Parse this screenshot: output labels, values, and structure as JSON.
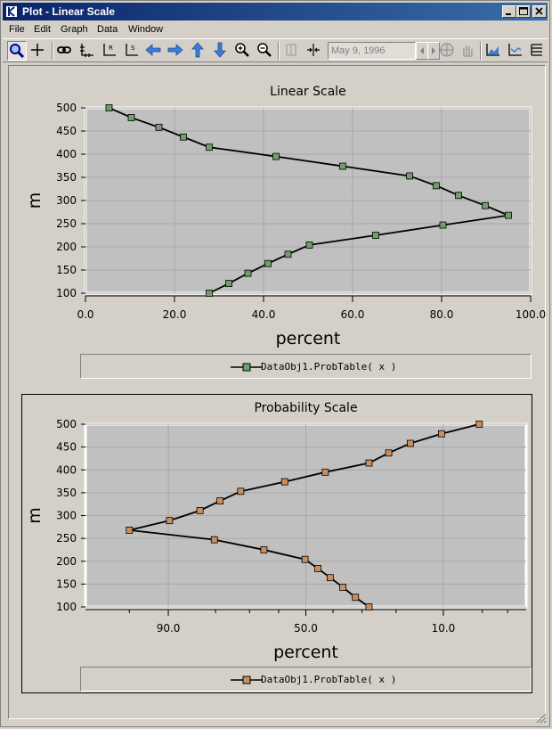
{
  "window": {
    "title": "Plot - Linear Scale"
  },
  "menu": [
    "File",
    "Edit",
    "Graph",
    "Data",
    "Window"
  ],
  "toolbar": {
    "date_value": "May 9, 1996"
  },
  "colors": {
    "plot_bg": "#c0c0c0",
    "line": "#000000",
    "marker_linear": "#6fa06a",
    "marker_prob": "#c89060"
  },
  "chart_data": [
    {
      "type": "line",
      "title": "Linear Scale",
      "xlabel": "percent",
      "ylabel": "m",
      "xlim": [
        0,
        100
      ],
      "ylim": [
        100,
        500
      ],
      "xscale": "linear",
      "xticks": [
        0,
        20,
        40,
        60,
        80,
        100
      ],
      "xtick_labels": [
        "0.0",
        "20.0",
        "40.0",
        "60.0",
        "80.0",
        "100.0"
      ],
      "yticks": [
        100,
        150,
        200,
        250,
        300,
        350,
        400,
        450,
        500
      ],
      "grid": true,
      "legend_position": "bottom",
      "series": [
        {
          "name": "DataObj1.ProbTable( x )",
          "x": [
            5.3,
            10.3,
            16.5,
            22.0,
            27.8,
            42.8,
            57.8,
            72.8,
            78.8,
            83.8,
            89.8,
            95.0,
            80.3,
            65.2,
            50.3,
            45.5,
            41.0,
            36.5,
            32.2,
            27.8
          ],
          "y": [
            500,
            479,
            458,
            437,
            415,
            395,
            374,
            353,
            332,
            311,
            289,
            268,
            247,
            225,
            204,
            184,
            164,
            143,
            121,
            100
          ]
        }
      ]
    },
    {
      "type": "line",
      "title": "Probability Scale",
      "xlabel": "percent",
      "ylabel": "m",
      "ylim": [
        100,
        500
      ],
      "xscale": "probability (reversed)",
      "xlim": [
        98,
        2
      ],
      "xticks": [
        90,
        50,
        10
      ],
      "xtick_labels": [
        "90.0",
        "50.0",
        "10.0"
      ],
      "yticks": [
        100,
        150,
        200,
        250,
        300,
        350,
        400,
        450,
        500
      ],
      "grid": true,
      "legend_position": "bottom",
      "series": [
        {
          "name": "DataObj1.ProbTable( x )",
          "x": [
            5.3,
            10.3,
            16.5,
            22.0,
            27.8,
            42.8,
            57.8,
            72.8,
            78.8,
            83.8,
            89.8,
            95.0,
            80.3,
            65.2,
            50.3,
            45.5,
            41.0,
            36.5,
            32.2,
            27.8
          ],
          "y": [
            500,
            479,
            458,
            437,
            415,
            395,
            374,
            353,
            332,
            311,
            289,
            268,
            247,
            225,
            204,
            184,
            164,
            143,
            121,
            100
          ]
        }
      ]
    }
  ]
}
